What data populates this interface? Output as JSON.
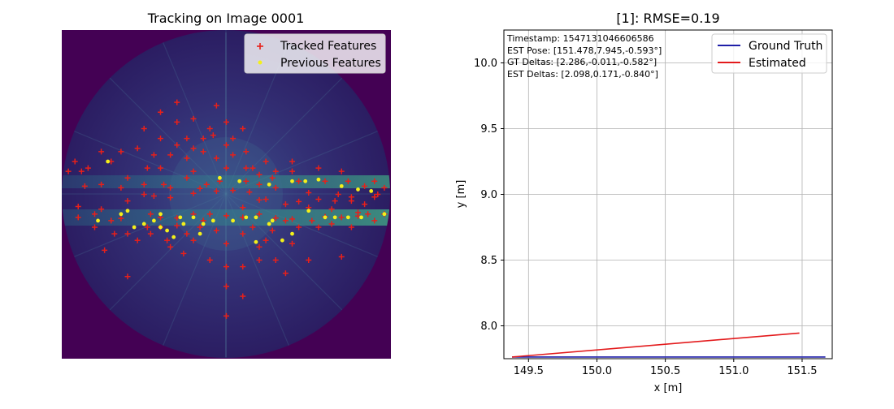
{
  "chart_data": [
    {
      "type": "scatter",
      "title": "Tracking on Image 0001",
      "image": "polar sonar scan (viridis colormap)",
      "legend": {
        "placement": "top-right",
        "entries": [
          "Tracked Features",
          "Previous Features"
        ]
      },
      "series": [
        {
          "name": "Tracked Features",
          "marker": "plus",
          "color": "#e8201a",
          "points": [
            [
              0.05,
              0.537
            ],
            [
              0.25,
              0.5
            ],
            [
              0.4,
              0.497
            ],
            [
              0.6,
              0.517
            ],
            [
              0.75,
              0.495
            ],
            [
              0.95,
              0.508
            ],
            [
              0.3,
              0.57
            ],
            [
              0.5,
              0.565
            ],
            [
              0.7,
              0.575
            ],
            [
              0.85,
              0.57
            ],
            [
              0.12,
              0.545
            ],
            [
              0.18,
              0.573
            ],
            [
              0.35,
              0.572
            ],
            [
              0.45,
              0.56
            ],
            [
              0.55,
              0.57
            ],
            [
              0.65,
              0.572
            ],
            [
              0.8,
              0.568
            ],
            [
              0.9,
              0.566
            ],
            [
              0.28,
              0.505
            ],
            [
              0.33,
              0.51
            ],
            [
              0.42,
              0.482
            ],
            [
              0.47,
              0.49
            ],
            [
              0.52,
              0.488
            ],
            [
              0.57,
              0.493
            ],
            [
              0.62,
              0.515
            ],
            [
              0.68,
              0.53
            ],
            [
              0.72,
              0.522
            ],
            [
              0.78,
              0.515
            ],
            [
              0.83,
              0.52
            ],
            [
              0.88,
              0.508
            ],
            [
              0.25,
              0.3
            ],
            [
              0.3,
              0.33
            ],
            [
              0.35,
              0.28
            ],
            [
              0.4,
              0.36
            ],
            [
              0.45,
              0.3
            ],
            [
              0.5,
              0.35
            ],
            [
              0.55,
              0.3
            ],
            [
              0.3,
              0.42
            ],
            [
              0.4,
              0.43
            ],
            [
              0.5,
              0.42
            ],
            [
              0.6,
              0.44
            ],
            [
              0.7,
              0.4
            ],
            [
              0.2,
              0.45
            ],
            [
              0.15,
              0.4
            ],
            [
              0.35,
              0.22
            ],
            [
              0.47,
              0.23
            ],
            [
              0.23,
              0.64
            ],
            [
              0.3,
              0.6
            ],
            [
              0.4,
              0.64
            ],
            [
              0.5,
              0.65
            ],
            [
              0.6,
              0.66
            ],
            [
              0.65,
              0.7
            ],
            [
              0.7,
              0.65
            ],
            [
              0.55,
              0.72
            ],
            [
              0.45,
              0.7
            ],
            [
              0.75,
              0.7
            ],
            [
              0.85,
              0.69
            ],
            [
              0.2,
              0.75
            ],
            [
              0.5,
              0.78
            ],
            [
              0.55,
              0.81
            ],
            [
              0.5,
              0.87
            ],
            [
              0.48,
              0.46
            ],
            [
              0.38,
              0.45
            ],
            [
              0.33,
              0.48
            ],
            [
              0.25,
              0.47
            ],
            [
              0.18,
              0.48
            ],
            [
              0.12,
              0.47
            ],
            [
              0.07,
              0.475
            ],
            [
              0.02,
              0.43
            ],
            [
              0.08,
              0.42
            ],
            [
              0.6,
              0.47
            ],
            [
              0.65,
              0.48
            ],
            [
              0.72,
              0.46
            ],
            [
              0.8,
              0.46
            ],
            [
              0.87,
              0.46
            ],
            [
              0.92,
              0.475
            ],
            [
              0.98,
              0.48
            ],
            [
              0.95,
              0.46
            ],
            [
              0.42,
              0.6
            ],
            [
              0.58,
              0.6
            ],
            [
              0.62,
              0.64
            ],
            [
              0.38,
              0.62
            ],
            [
              0.33,
              0.66
            ],
            [
              0.27,
              0.62
            ],
            [
              0.2,
              0.62
            ],
            [
              0.16,
              0.62
            ],
            [
              0.78,
              0.6
            ],
            [
              0.82,
              0.59
            ],
            [
              0.88,
              0.6
            ],
            [
              0.93,
              0.56
            ],
            [
              0.98,
              0.56
            ],
            [
              0.13,
              0.67
            ],
            [
              0.1,
              0.6
            ],
            [
              0.05,
              0.57
            ],
            [
              0.04,
              0.4
            ],
            [
              0.85,
              0.43
            ],
            [
              0.78,
              0.42
            ],
            [
              0.7,
              0.43
            ],
            [
              0.64,
              0.45
            ],
            [
              0.56,
              0.46
            ],
            [
              0.62,
              0.4
            ],
            [
              0.56,
              0.37
            ],
            [
              0.52,
              0.33
            ],
            [
              0.33,
              0.38
            ],
            [
              0.28,
              0.38
            ],
            [
              0.23,
              0.36
            ],
            [
              0.18,
              0.37
            ],
            [
              0.12,
              0.37
            ],
            [
              0.06,
              0.43
            ],
            [
              0.75,
              0.54
            ],
            [
              0.82,
              0.545
            ],
            [
              0.9,
              0.555
            ],
            [
              0.95,
              0.58
            ],
            [
              0.6,
              0.7
            ],
            [
              0.68,
              0.74
            ],
            [
              0.5,
              0.72
            ],
            [
              0.37,
              0.68
            ],
            [
              0.32,
              0.64
            ],
            [
              0.26,
              0.6
            ],
            [
              0.43,
              0.58
            ],
            [
              0.47,
              0.61
            ],
            [
              0.55,
              0.62
            ],
            [
              0.64,
              0.61
            ],
            [
              0.72,
              0.6
            ],
            [
              0.27,
              0.56
            ],
            [
              0.35,
              0.595
            ],
            [
              0.4,
              0.56
            ],
            [
              0.55,
              0.54
            ],
            [
              0.6,
              0.56
            ],
            [
              0.68,
              0.58
            ],
            [
              0.76,
              0.58
            ],
            [
              0.38,
              0.33
            ],
            [
              0.43,
              0.37
            ],
            [
              0.47,
              0.39
            ],
            [
              0.52,
              0.38
            ],
            [
              0.58,
              0.42
            ],
            [
              0.65,
              0.43
            ],
            [
              0.44,
              0.47
            ],
            [
              0.56,
              0.42
            ],
            [
              0.31,
              0.47
            ],
            [
              0.2,
              0.52
            ],
            [
              0.15,
              0.58
            ],
            [
              0.1,
              0.56
            ],
            [
              0.84,
              0.5
            ],
            [
              0.88,
              0.52
            ],
            [
              0.92,
              0.53
            ],
            [
              0.96,
              0.5
            ],
            [
              0.3,
              0.25
            ],
            [
              0.4,
              0.27
            ],
            [
              0.43,
              0.33
            ],
            [
              0.5,
              0.28
            ],
            [
              0.46,
              0.32
            ],
            [
              0.35,
              0.35
            ],
            [
              0.26,
              0.42
            ],
            [
              0.38,
              0.39
            ]
          ]
        },
        {
          "name": "Previous Features",
          "marker": "dot",
          "color": "#f4f01a",
          "points": [
            [
              0.14,
              0.4
            ],
            [
              0.3,
              0.56
            ],
            [
              0.36,
              0.57
            ],
            [
              0.4,
              0.57
            ],
            [
              0.28,
              0.58
            ],
            [
              0.22,
              0.6
            ],
            [
              0.18,
              0.56
            ],
            [
              0.11,
              0.58
            ],
            [
              0.34,
              0.63
            ],
            [
              0.42,
              0.62
            ],
            [
              0.56,
              0.57
            ],
            [
              0.64,
              0.58
            ],
            [
              0.75,
              0.55
            ],
            [
              0.83,
              0.57
            ],
            [
              0.91,
              0.57
            ],
            [
              0.98,
              0.56
            ],
            [
              0.54,
              0.46
            ],
            [
              0.63,
              0.47
            ],
            [
              0.7,
              0.46
            ],
            [
              0.74,
              0.46
            ],
            [
              0.78,
              0.455
            ],
            [
              0.85,
              0.475
            ],
            [
              0.9,
              0.485
            ],
            [
              0.94,
              0.49
            ],
            [
              0.59,
              0.57
            ],
            [
              0.7,
              0.62
            ],
            [
              0.67,
              0.64
            ],
            [
              0.63,
              0.59
            ],
            [
              0.52,
              0.58
            ],
            [
              0.46,
              0.58
            ],
            [
              0.43,
              0.59
            ],
            [
              0.48,
              0.45
            ],
            [
              0.2,
              0.55
            ],
            [
              0.25,
              0.59
            ],
            [
              0.3,
              0.6
            ],
            [
              0.32,
              0.61
            ],
            [
              0.37,
              0.59
            ],
            [
              0.59,
              0.645
            ],
            [
              0.8,
              0.57
            ],
            [
              0.87,
              0.57
            ]
          ]
        }
      ]
    },
    {
      "type": "line",
      "title": "[1]: RMSE=0.19",
      "xlabel": "x [m]",
      "ylabel": "y [m]",
      "xlim": [
        149.32,
        151.72
      ],
      "ylim": [
        7.75,
        10.25
      ],
      "xticks": [
        "149.5",
        "150.0",
        "150.5",
        "151.0",
        "151.5"
      ],
      "yticks": [
        "8.0",
        "8.5",
        "9.0",
        "9.5",
        "10.0"
      ],
      "grid": true,
      "legend": {
        "placement": "top-right",
        "entries": [
          "Ground Truth",
          "Estimated"
        ]
      },
      "annotations": [
        "Timestamp: 1547131046606586",
        "EST Pose: [151.478,7.945,-0.593°]",
        "GT Deltas: [2.286,-0.011,-0.582°]",
        "EST Deltas: [2.098,0.171,-0.840°]"
      ],
      "series": [
        {
          "name": "Ground Truth",
          "color": "#1f1fa8",
          "x": [
            149.38,
            151.67
          ],
          "y": [
            7.763,
            7.763
          ]
        },
        {
          "name": "Estimated",
          "color": "#e31a1c",
          "x": [
            149.38,
            151.48
          ],
          "y": [
            7.763,
            7.945
          ]
        }
      ]
    }
  ]
}
